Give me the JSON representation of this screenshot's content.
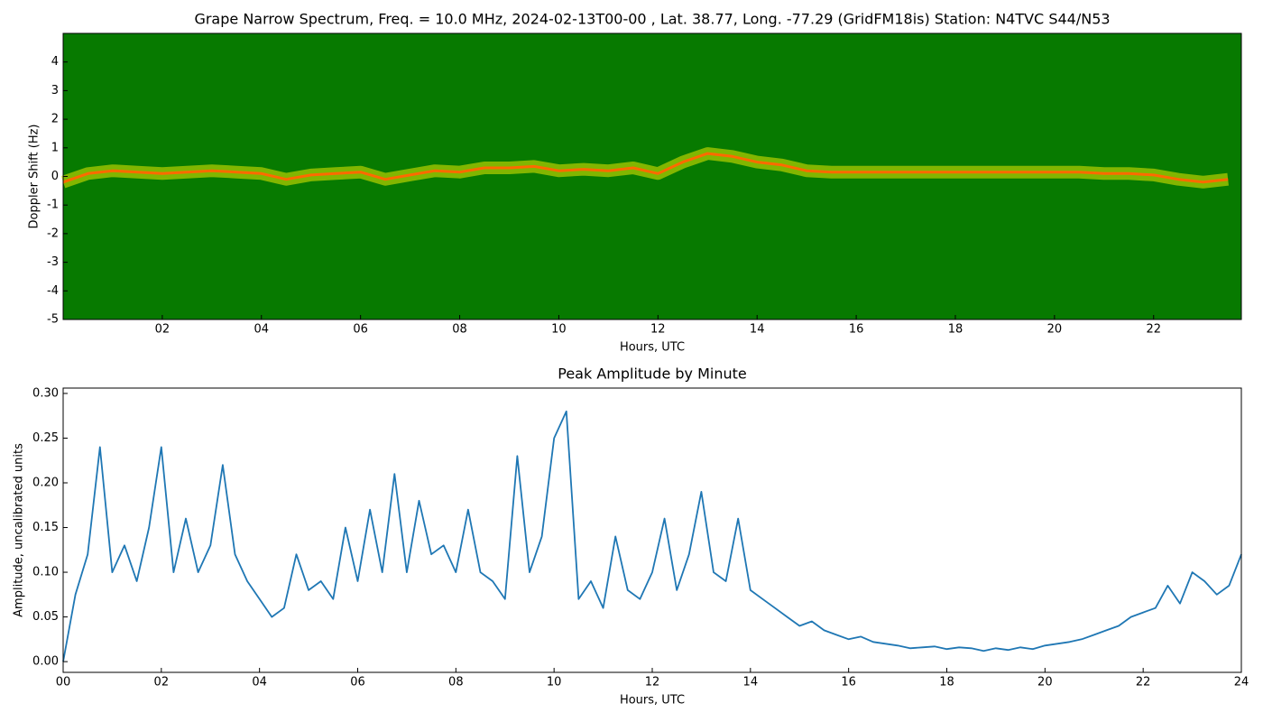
{
  "chart_data": [
    {
      "type": "spectrogram",
      "title": "Grape Narrow Spectrum, Freq. = 10.0 MHz, 2024-02-13T00-00 , Lat.  38.77, Long. -77.29 (GridFM18is) Station: N4TVC S44/N53",
      "xlabel": "Hours, UTC",
      "ylabel": "Doppler Shift (Hz)",
      "background": "#077a00",
      "x": [
        0,
        0.5,
        1,
        1.5,
        2,
        2.5,
        3,
        3.5,
        4,
        4.5,
        5,
        5.5,
        6,
        6.5,
        7,
        7.5,
        8,
        8.5,
        9,
        9.5,
        10,
        10.5,
        11,
        11.5,
        12,
        12.5,
        13,
        13.5,
        14,
        14.5,
        15,
        15.5,
        16,
        16.5,
        17,
        17.5,
        18,
        18.5,
        19,
        19.5,
        20,
        20.5,
        21,
        21.5,
        22,
        22.5,
        23,
        23.5
      ],
      "series": [
        {
          "color": "#ff6a00",
          "glow_color": "#e8e800",
          "values": [
            -0.2,
            0.1,
            0.2,
            0.15,
            0.1,
            0.15,
            0.2,
            0.15,
            0.1,
            -0.1,
            0.05,
            0.1,
            0.15,
            -0.1,
            0.05,
            0.2,
            0.15,
            0.3,
            0.3,
            0.35,
            0.2,
            0.25,
            0.2,
            0.3,
            0.1,
            0.5,
            0.8,
            0.7,
            0.5,
            0.4,
            0.2,
            0.15,
            0.15,
            0.15,
            0.15,
            0.15,
            0.15,
            0.15,
            0.15,
            0.15,
            0.15,
            0.15,
            0.1,
            0.1,
            0.05,
            -0.1,
            -0.2,
            -0.1
          ]
        }
      ],
      "xlim": [
        0,
        23.77
      ],
      "ylim": [
        -5,
        5
      ],
      "xticks": [
        {
          "value": 2,
          "label": "02"
        },
        {
          "value": 4,
          "label": "04"
        },
        {
          "value": 6,
          "label": "06"
        },
        {
          "value": 8,
          "label": "08"
        },
        {
          "value": 10,
          "label": "10"
        },
        {
          "value": 12,
          "label": "12"
        },
        {
          "value": 14,
          "label": "14"
        },
        {
          "value": 16,
          "label": "16"
        },
        {
          "value": 18,
          "label": "18"
        },
        {
          "value": 20,
          "label": "20"
        },
        {
          "value": 22,
          "label": "22"
        }
      ],
      "yticks": [
        -5,
        -4,
        -3,
        -2,
        -1,
        0,
        1,
        2,
        3,
        4
      ]
    },
    {
      "type": "line",
      "title": "Peak Amplitude by Minute",
      "xlabel": "Hours, UTC",
      "ylabel": "Amplitude, uncalibrated units",
      "x": [
        0,
        0.25,
        0.5,
        0.75,
        1,
        1.25,
        1.5,
        1.75,
        2,
        2.25,
        2.5,
        2.75,
        3,
        3.25,
        3.5,
        3.75,
        4,
        4.25,
        4.5,
        4.75,
        5,
        5.25,
        5.5,
        5.75,
        6,
        6.25,
        6.5,
        6.75,
        7,
        7.25,
        7.5,
        7.75,
        8,
        8.25,
        8.5,
        8.75,
        9,
        9.25,
        9.5,
        9.75,
        10,
        10.25,
        10.5,
        10.75,
        11,
        11.25,
        11.5,
        11.75,
        12,
        12.25,
        12.5,
        12.75,
        13,
        13.25,
        13.5,
        13.75,
        14,
        14.25,
        14.5,
        14.75,
        15,
        15.25,
        15.5,
        15.75,
        16,
        16.25,
        16.5,
        16.75,
        17,
        17.25,
        17.5,
        17.75,
        18,
        18.25,
        18.5,
        18.75,
        19,
        19.25,
        19.5,
        19.75,
        20,
        20.25,
        20.5,
        20.75,
        21,
        21.25,
        21.5,
        21.75,
        22,
        22.25,
        22.5,
        22.75,
        23,
        23.25,
        23.5,
        23.75,
        24
      ],
      "series": [
        {
          "color": "#1f77b4",
          "values": [
            0.0,
            0.075,
            0.12,
            0.24,
            0.1,
            0.13,
            0.09,
            0.15,
            0.24,
            0.1,
            0.16,
            0.1,
            0.13,
            0.22,
            0.12,
            0.09,
            0.07,
            0.05,
            0.06,
            0.12,
            0.08,
            0.09,
            0.07,
            0.15,
            0.09,
            0.17,
            0.1,
            0.21,
            0.1,
            0.18,
            0.12,
            0.13,
            0.1,
            0.17,
            0.1,
            0.09,
            0.07,
            0.23,
            0.1,
            0.14,
            0.25,
            0.28,
            0.07,
            0.09,
            0.06,
            0.14,
            0.08,
            0.07,
            0.1,
            0.16,
            0.08,
            0.12,
            0.19,
            0.1,
            0.09,
            0.16,
            0.08,
            0.07,
            0.06,
            0.05,
            0.04,
            0.045,
            0.035,
            0.03,
            0.025,
            0.028,
            0.022,
            0.02,
            0.018,
            0.015,
            0.016,
            0.017,
            0.014,
            0.016,
            0.015,
            0.012,
            0.015,
            0.013,
            0.016,
            0.014,
            0.018,
            0.02,
            0.022,
            0.025,
            0.03,
            0.035,
            0.04,
            0.05,
            0.055,
            0.06,
            0.085,
            0.065,
            0.1,
            0.09,
            0.075,
            0.085,
            0.12
          ]
        }
      ],
      "xlim": [
        0,
        24
      ],
      "ylim": [
        -0.012,
        0.306
      ],
      "xticks": [
        {
          "value": 0,
          "label": "00"
        },
        {
          "value": 2,
          "label": "02"
        },
        {
          "value": 4,
          "label": "04"
        },
        {
          "value": 6,
          "label": "06"
        },
        {
          "value": 8,
          "label": "08"
        },
        {
          "value": 10,
          "label": "10"
        },
        {
          "value": 12,
          "label": "12"
        },
        {
          "value": 14,
          "label": "14"
        },
        {
          "value": 16,
          "label": "16"
        },
        {
          "value": 18,
          "label": "18"
        },
        {
          "value": 20,
          "label": "20"
        },
        {
          "value": 22,
          "label": "22"
        },
        {
          "value": 24,
          "label": "24"
        }
      ],
      "yticks": [
        {
          "value": 0,
          "label": "0.00"
        },
        {
          "value": 0.05,
          "label": "0.05"
        },
        {
          "value": 0.1,
          "label": "0.10"
        },
        {
          "value": 0.15,
          "label": "0.15"
        },
        {
          "value": 0.2,
          "label": "0.20"
        },
        {
          "value": 0.25,
          "label": "0.25"
        },
        {
          "value": 0.3,
          "label": "0.30"
        }
      ]
    }
  ]
}
